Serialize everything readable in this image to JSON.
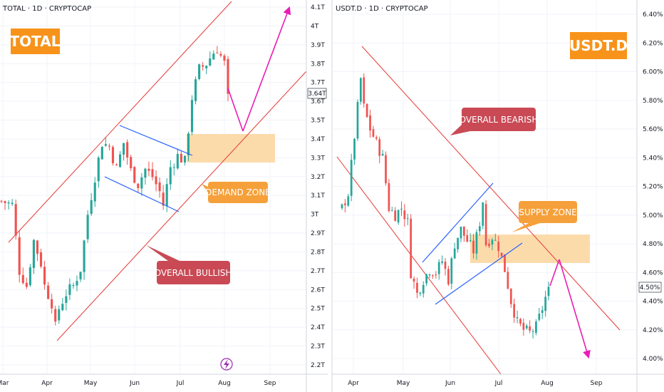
{
  "colors": {
    "up": "#26a69a",
    "down": "#ef5350",
    "channel_red": "#e53935",
    "channel_blue": "#2962ff",
    "arrow": "#e91eb3",
    "zone": "#fbd59c",
    "label_red": "#c94a55",
    "label_orange": "#f5a03a",
    "tag_orange": "#f7931a"
  },
  "chart_data": [
    {
      "type": "candlestick",
      "title": "TOTAL · 1D · CRYPTOCAP",
      "tag": "TOTAL",
      "xlabels": [
        "Mar",
        "Apr",
        "May",
        "Jun",
        "Jul",
        "Aug",
        "Sep"
      ],
      "ylabels": [
        "4.1T",
        "4T",
        "3.9T",
        "3.8T",
        "3.7T",
        "3.6T",
        "3.5T",
        "3.4T",
        "3.3T",
        "3.2T",
        "3.1T",
        "3T",
        "2.9T",
        "2.8T",
        "2.7T",
        "2.6T",
        "2.5T",
        "2.4T",
        "2.3T",
        "2.2T"
      ],
      "ylim": [
        2.2,
        4.1
      ],
      "current_price_label": "3.64T",
      "current_price": 3.64,
      "annotations": [
        "DEMAND ZONE",
        "OVERALL BULLISH"
      ],
      "demand_zone": [
        3.29,
        3.44
      ],
      "path": [
        [
          0,
          3.07
        ],
        [
          3,
          3.05
        ],
        [
          5,
          2.7
        ],
        [
          7,
          2.62
        ],
        [
          9,
          2.86
        ],
        [
          11,
          2.74
        ],
        [
          12,
          2.62
        ],
        [
          14,
          2.53
        ],
        [
          15,
          2.4
        ],
        [
          16,
          2.5
        ],
        [
          18,
          2.58
        ],
        [
          20,
          2.62
        ],
        [
          22,
          2.71
        ],
        [
          24,
          3.0
        ],
        [
          26,
          3.2
        ],
        [
          28,
          3.38
        ],
        [
          30,
          3.36
        ],
        [
          32,
          3.24
        ],
        [
          34,
          3.38
        ],
        [
          36,
          3.23
        ],
        [
          38,
          3.16
        ],
        [
          40,
          3.24
        ],
        [
          42,
          3.2
        ],
        [
          44,
          3.12
        ],
        [
          45,
          3.05
        ],
        [
          47,
          3.25
        ],
        [
          49,
          3.31
        ],
        [
          51,
          3.28
        ],
        [
          53,
          3.62
        ],
        [
          55,
          3.77
        ],
        [
          57,
          3.8
        ],
        [
          59,
          3.86
        ],
        [
          60,
          3.88
        ],
        [
          62,
          3.8
        ],
        [
          63,
          3.64
        ]
      ]
    },
    {
      "type": "candlestick",
      "title": "USDT.D · 1D · CRYPTOCAP",
      "tag": "USDT.D",
      "xlabels": [
        "Apr",
        "May",
        "Jun",
        "Jul",
        "Aug",
        "Sep"
      ],
      "ylabels": [
        "6.40%",
        "6.20%",
        "6.00%",
        "5.80%",
        "5.60%",
        "5.40%",
        "5.20%",
        "5.00%",
        "4.80%",
        "4.60%",
        "4.40%",
        "4.20%",
        "4.00%"
      ],
      "ylim": [
        4.0,
        6.4
      ],
      "current_price_label": "4.50%",
      "current_price": 4.5,
      "annotations": [
        "OVERALL BEARISH",
        "SUPPLY ZONE"
      ],
      "supply_zone": [
        4.68,
        4.87
      ],
      "path": [
        [
          0,
          5.05
        ],
        [
          2,
          5.15
        ],
        [
          4,
          5.55
        ],
        [
          6,
          5.95
        ],
        [
          7,
          5.75
        ],
        [
          9,
          5.6
        ],
        [
          11,
          5.5
        ],
        [
          13,
          5.4
        ],
        [
          15,
          5.05
        ],
        [
          17,
          5.0
        ],
        [
          19,
          5.05
        ],
        [
          21,
          4.95
        ],
        [
          22,
          4.6
        ],
        [
          24,
          4.45
        ],
        [
          26,
          4.55
        ],
        [
          28,
          4.62
        ],
        [
          30,
          4.6
        ],
        [
          32,
          4.68
        ],
        [
          34,
          4.55
        ],
        [
          36,
          4.8
        ],
        [
          38,
          4.9
        ],
        [
          40,
          4.82
        ],
        [
          42,
          4.75
        ],
        [
          44,
          4.95
        ],
        [
          45,
          5.1
        ],
        [
          46,
          4.8
        ],
        [
          48,
          4.85
        ],
        [
          50,
          4.78
        ],
        [
          52,
          4.62
        ],
        [
          54,
          4.4
        ],
        [
          56,
          4.25
        ],
        [
          58,
          4.2
        ],
        [
          60,
          4.18
        ],
        [
          62,
          4.22
        ],
        [
          64,
          4.35
        ],
        [
          66,
          4.5
        ]
      ]
    }
  ]
}
